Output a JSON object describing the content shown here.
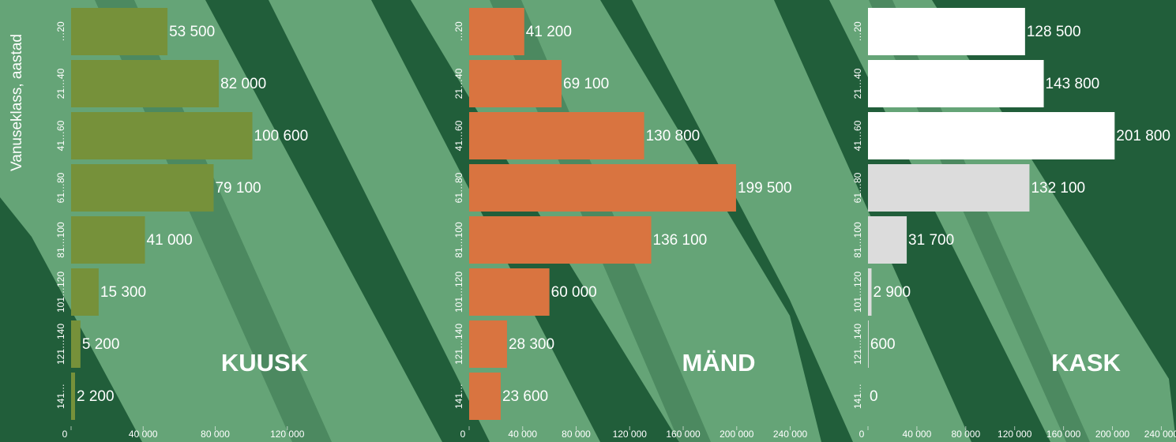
{
  "chart_data": [
    {
      "type": "bar",
      "title": "KUUSK",
      "y_label": "Vanuseklass, aastad",
      "categories": [
        "…20",
        "21…40",
        "41…60",
        "61…80",
        "81…100",
        "101…120",
        "121…140",
        "141…"
      ],
      "values": [
        53500,
        82000,
        100600,
        79100,
        41000,
        15300,
        5200,
        2200
      ],
      "value_labels": [
        "53 500",
        "82 000",
        "100 600",
        "79 100",
        "41 000",
        "15 300",
        "5 200",
        "2 200"
      ],
      "color": "#76913a",
      "xlim": [
        0,
        206000
      ],
      "xticks": [
        0,
        {
          "value": 40000,
          "label": "40 000"
        },
        {
          "value": 80000,
          "label": "80 000"
        },
        {
          "value": 120000,
          "label": "120 000"
        }
      ]
    },
    {
      "type": "bar",
      "title": "MÄND",
      "categories": [
        "…20",
        "21…40",
        "41…60",
        "61…80",
        "81…100",
        "101…120",
        "121…140",
        "141…"
      ],
      "values": [
        41200,
        69100,
        130800,
        199500,
        136100,
        60000,
        28300,
        23600
      ],
      "value_labels": [
        "41 200",
        "69 100",
        "130 800",
        "199 500",
        "136 100",
        "60 000",
        "28 300",
        "23 600"
      ],
      "color": "#d97440",
      "xlim": [
        0,
        281000
      ],
      "xticks": [
        0,
        {
          "value": 40000,
          "label": "40 000"
        },
        {
          "value": 80000,
          "label": "80 000"
        },
        {
          "value": 120000,
          "label": "120 000"
        },
        {
          "value": 160000,
          "label": "160 000"
        },
        {
          "value": 200000,
          "label": "200 000"
        },
        {
          "value": 240000,
          "label": "240 000"
        }
      ]
    },
    {
      "type": "bar",
      "title": "KASK",
      "categories": [
        "…20",
        "21…40",
        "41…60",
        "61…80",
        "81…100",
        "101…120",
        "121…140",
        "141…"
      ],
      "values": [
        128500,
        143800,
        201800,
        132100,
        31700,
        2900,
        600,
        0
      ],
      "value_labels": [
        "128 500",
        "143 800",
        "201 800",
        "132 100",
        "31 700",
        "2 900",
        "600",
        "0"
      ],
      "colors": [
        "#ffffff",
        "#ffffff",
        "#ffffff",
        "#dcdcdc",
        "#dcdcdc",
        "#dcdcdc",
        "#dcdcdc",
        "#dcdcdc"
      ],
      "xlim": [
        0,
        252000
      ],
      "xticks": [
        0,
        {
          "value": 40000,
          "label": "40 000"
        },
        {
          "value": 80000,
          "label": "80 000"
        },
        {
          "value": 120000,
          "label": "120 000"
        },
        {
          "value": 160000,
          "label": "160 000"
        },
        {
          "value": 200000,
          "label": "200 000"
        },
        {
          "value": 240000,
          "label": "240 000"
        }
      ]
    }
  ]
}
